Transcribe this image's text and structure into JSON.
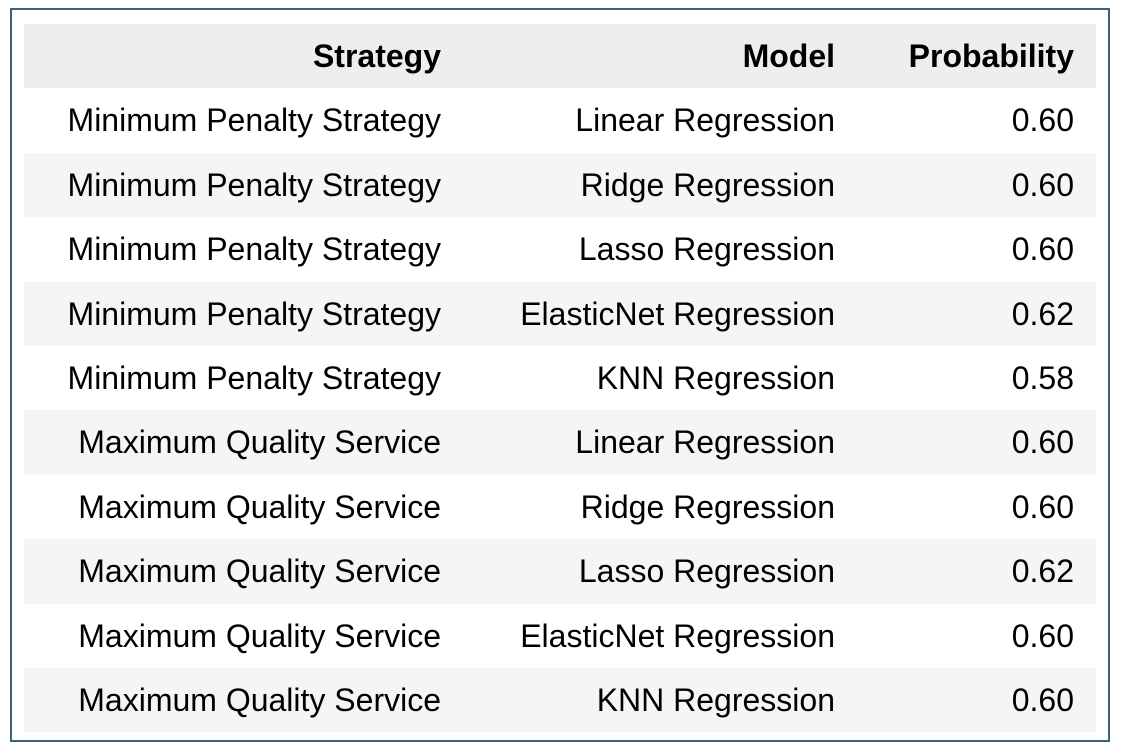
{
  "table": {
    "columns": [
      "Strategy",
      "Model",
      "Probability"
    ],
    "rows": [
      [
        "Minimum Penalty Strategy",
        "Linear Regression",
        "0.60"
      ],
      [
        "Minimum Penalty Strategy",
        "Ridge Regression",
        "0.60"
      ],
      [
        "Minimum Penalty Strategy",
        "Lasso Regression",
        "0.60"
      ],
      [
        "Minimum Penalty Strategy",
        "ElasticNet Regression",
        "0.62"
      ],
      [
        "Minimum Penalty Strategy",
        "KNN Regression",
        "0.58"
      ],
      [
        "Maximum Quality Service",
        "Linear Regression",
        "0.60"
      ],
      [
        "Maximum Quality Service",
        "Ridge Regression",
        "0.60"
      ],
      [
        "Maximum Quality Service",
        "Lasso Regression",
        "0.62"
      ],
      [
        "Maximum Quality Service",
        "ElasticNet Regression",
        "0.60"
      ],
      [
        "Maximum Quality Service",
        "KNN Regression",
        "0.60"
      ]
    ]
  },
  "colors": {
    "border": "#3f6177",
    "header_background": "#eeeeee",
    "stripe_background": "#f5f5f5"
  }
}
